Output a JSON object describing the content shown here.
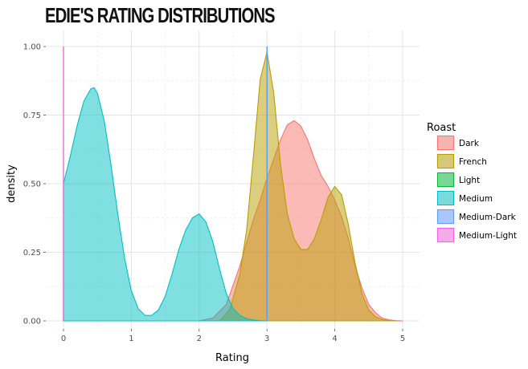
{
  "title": "EDIE'S RATING DISTRIBUTIONS",
  "chart_data": {
    "type": "area",
    "title": "EDIE'S RATING DISTRIBUTIONS",
    "xlabel": "Rating",
    "ylabel": "density",
    "xlim": [
      0,
      5
    ],
    "ylim": [
      0,
      1
    ],
    "x_ticks": [
      "0",
      "1",
      "2",
      "3",
      "4",
      "5"
    ],
    "y_ticks": [
      "0.00",
      "0.25",
      "0.50",
      "0.75",
      "1.00"
    ],
    "grid": true,
    "legend_title": "Roast",
    "legend_position": "right",
    "series": [
      {
        "name": "Dark",
        "color": "#F8766D",
        "x": [
          2.0,
          2.2,
          2.4,
          2.6,
          2.8,
          2.9,
          3.0,
          3.1,
          3.2,
          3.3,
          3.4,
          3.5,
          3.6,
          3.7,
          3.8,
          3.9,
          4.0,
          4.1,
          4.2,
          4.3,
          4.4,
          4.5,
          4.6,
          4.7,
          4.8,
          4.9,
          5.0
        ],
        "y": [
          0,
          0.01,
          0.06,
          0.2,
          0.37,
          0.44,
          0.52,
          0.59,
          0.66,
          0.715,
          0.73,
          0.71,
          0.66,
          0.59,
          0.53,
          0.49,
          0.44,
          0.38,
          0.3,
          0.2,
          0.12,
          0.06,
          0.03,
          0.01,
          0.004,
          0.001,
          0
        ]
      },
      {
        "name": "French",
        "color": "#B79F00",
        "x": [
          2.3,
          2.45,
          2.6,
          2.7,
          2.8,
          2.9,
          3.0,
          3.1,
          3.2,
          3.3,
          3.4,
          3.5,
          3.6,
          3.7,
          3.8,
          3.9,
          4.0,
          4.1,
          4.2,
          4.3,
          4.4,
          4.5,
          4.6,
          4.7,
          4.8,
          4.9
        ],
        "y": [
          0,
          0.04,
          0.17,
          0.33,
          0.6,
          0.88,
          0.98,
          0.83,
          0.57,
          0.39,
          0.3,
          0.26,
          0.26,
          0.3,
          0.37,
          0.45,
          0.49,
          0.46,
          0.35,
          0.21,
          0.1,
          0.04,
          0.015,
          0.005,
          0.001,
          0
        ]
      },
      {
        "name": "Light",
        "color": "#00BA38",
        "x": [
          3,
          3
        ],
        "y": [
          0,
          1.0
        ]
      },
      {
        "name": "Medium",
        "color": "#00BFC4",
        "x": [
          0,
          0.1,
          0.2,
          0.3,
          0.4,
          0.45,
          0.5,
          0.6,
          0.7,
          0.8,
          0.9,
          1.0,
          1.1,
          1.2,
          1.3,
          1.4,
          1.5,
          1.6,
          1.7,
          1.8,
          1.9,
          2.0,
          2.1,
          2.2,
          2.3,
          2.4,
          2.5,
          2.6,
          2.7,
          2.8,
          2.9,
          3.0
        ],
        "y": [
          0.5,
          0.6,
          0.71,
          0.8,
          0.845,
          0.85,
          0.83,
          0.73,
          0.57,
          0.39,
          0.23,
          0.11,
          0.045,
          0.02,
          0.02,
          0.04,
          0.09,
          0.17,
          0.26,
          0.33,
          0.375,
          0.39,
          0.36,
          0.29,
          0.19,
          0.1,
          0.045,
          0.02,
          0.008,
          0.003,
          0.001,
          0
        ]
      },
      {
        "name": "Medium-Dark",
        "color": "#619CFF",
        "x": [
          3,
          3
        ],
        "y": [
          0,
          1.0
        ]
      },
      {
        "name": "Medium-Light",
        "color": "#F564E3",
        "x": [
          0,
          0
        ],
        "y": [
          0,
          1.0
        ]
      }
    ]
  }
}
